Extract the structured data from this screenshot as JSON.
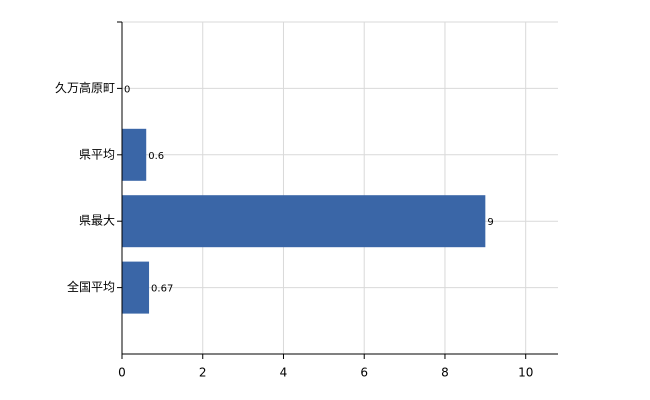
{
  "chart_data": {
    "type": "hbar",
    "categories": [
      "久万高原町",
      "県平均",
      "県最大",
      "全国平均"
    ],
    "values": [
      0,
      0.6,
      9,
      0.67
    ],
    "color": "#3a66a7",
    "xlim": [
      0,
      10.8
    ],
    "xticks": [
      0,
      2,
      4,
      6,
      8,
      10
    ],
    "grid": true
  }
}
